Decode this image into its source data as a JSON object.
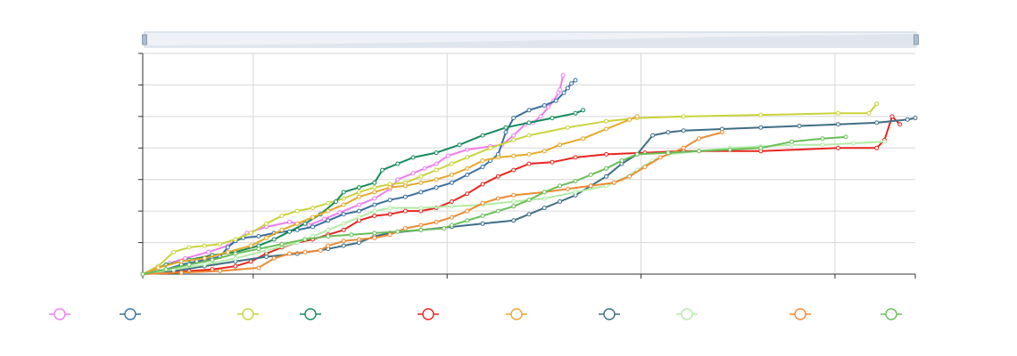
{
  "chart_data": {
    "type": "line",
    "title": "",
    "xlabel": "",
    "ylabel": "",
    "xlim": [
      0,
      100
    ],
    "ylim": [
      0,
      140
    ],
    "x_gridlines": [
      14.3,
      39.4,
      64.5,
      89.6
    ],
    "y_gridlines": [
      20,
      40,
      60,
      80,
      100,
      120
    ],
    "grid": true,
    "legend_position": "bottom",
    "data_zoom_slider": {
      "start": 0,
      "end": 100
    },
    "series": [
      {
        "color": "#f07cf0",
        "points": [
          [
            0,
            0
          ],
          [
            1.5,
            3
          ],
          [
            3.5,
            7
          ],
          [
            5.5,
            10
          ],
          [
            8.5,
            14
          ],
          [
            11,
            18
          ],
          [
            13.5,
            26
          ],
          [
            16,
            30
          ],
          [
            19,
            33
          ],
          [
            21.5,
            31
          ],
          [
            23.5,
            35
          ],
          [
            25.5,
            39
          ],
          [
            28,
            44
          ],
          [
            30,
            48
          ],
          [
            32,
            54
          ],
          [
            33,
            60
          ],
          [
            35,
            64
          ],
          [
            36.5,
            67
          ],
          [
            38,
            70
          ],
          [
            39.5,
            75
          ],
          [
            42,
            79
          ],
          [
            45,
            81
          ],
          [
            46.5,
            82
          ],
          [
            48,
            88
          ],
          [
            49.5,
            95
          ],
          [
            50.5,
            96
          ],
          [
            51.5,
            100
          ],
          [
            52.5,
            106
          ],
          [
            53.2,
            110
          ],
          [
            53.8,
            115
          ],
          [
            54,
            117
          ],
          [
            54.4,
            126
          ]
        ]
      },
      {
        "color": "#3a6fa0",
        "points": [
          [
            0,
            0
          ],
          [
            3,
            3
          ],
          [
            5,
            6
          ],
          [
            7,
            8
          ],
          [
            9,
            10
          ],
          [
            10,
            11
          ],
          [
            11,
            17
          ],
          [
            12,
            21
          ],
          [
            13,
            23
          ],
          [
            15,
            24
          ],
          [
            17,
            26
          ],
          [
            20,
            28
          ],
          [
            22,
            30
          ],
          [
            24,
            34
          ],
          [
            26,
            38
          ],
          [
            28,
            40
          ],
          [
            30,
            44
          ],
          [
            32,
            47
          ],
          [
            34,
            49
          ],
          [
            36,
            52
          ],
          [
            38,
            55
          ],
          [
            40,
            58
          ],
          [
            42,
            63
          ],
          [
            44,
            68
          ],
          [
            45,
            72
          ],
          [
            46,
            76
          ],
          [
            47,
            90
          ],
          [
            48,
            99
          ],
          [
            50,
            104
          ],
          [
            52,
            107
          ],
          [
            53.5,
            110
          ],
          [
            54.5,
            115
          ],
          [
            55,
            118
          ],
          [
            55.5,
            121
          ],
          [
            56,
            123
          ]
        ]
      },
      {
        "color": "#c8d43a",
        "points": [
          [
            0,
            0
          ],
          [
            2,
            5
          ],
          [
            4,
            14
          ],
          [
            6,
            17
          ],
          [
            8,
            18
          ],
          [
            10,
            19
          ],
          [
            12,
            22
          ],
          [
            14,
            26
          ],
          [
            16,
            32
          ],
          [
            18,
            37
          ],
          [
            20,
            40
          ],
          [
            22,
            42
          ],
          [
            24,
            45
          ],
          [
            26,
            48
          ],
          [
            28,
            52
          ],
          [
            30,
            55
          ],
          [
            32,
            57
          ],
          [
            34,
            58
          ],
          [
            36,
            62
          ],
          [
            38,
            66
          ],
          [
            40,
            70
          ],
          [
            42,
            74
          ],
          [
            45,
            80
          ],
          [
            48,
            85
          ],
          [
            50,
            88
          ],
          [
            55,
            93
          ],
          [
            60,
            97
          ],
          [
            64,
            99
          ],
          [
            70,
            100
          ],
          [
            80,
            101
          ],
          [
            90,
            102
          ],
          [
            94,
            102
          ],
          [
            95,
            108
          ]
        ]
      },
      {
        "color": "#158a5b",
        "points": [
          [
            0,
            0
          ],
          [
            3,
            6
          ],
          [
            6,
            9
          ],
          [
            9,
            12
          ],
          [
            12,
            14
          ],
          [
            15,
            18
          ],
          [
            17,
            22
          ],
          [
            19,
            27
          ],
          [
            21,
            32
          ],
          [
            23,
            38
          ],
          [
            25,
            46
          ],
          [
            26,
            52
          ],
          [
            28,
            55
          ],
          [
            30,
            58
          ],
          [
            31,
            66
          ],
          [
            33,
            70
          ],
          [
            35,
            74
          ],
          [
            38,
            77
          ],
          [
            41,
            82
          ],
          [
            44,
            88
          ],
          [
            47,
            93
          ],
          [
            50,
            96
          ],
          [
            53,
            99
          ],
          [
            56,
            102
          ],
          [
            57,
            104
          ]
        ]
      },
      {
        "color": "#e8251f",
        "points": [
          [
            0,
            0
          ],
          [
            3,
            1
          ],
          [
            6,
            2
          ],
          [
            9,
            3
          ],
          [
            12,
            5
          ],
          [
            14,
            8
          ],
          [
            16,
            13
          ],
          [
            18,
            17
          ],
          [
            20,
            20
          ],
          [
            22,
            22
          ],
          [
            24,
            25
          ],
          [
            26,
            28
          ],
          [
            28,
            34
          ],
          [
            30,
            37
          ],
          [
            32,
            38
          ],
          [
            34,
            40
          ],
          [
            36,
            40
          ],
          [
            38,
            42
          ],
          [
            40,
            46
          ],
          [
            42,
            51
          ],
          [
            44,
            57
          ],
          [
            46,
            62
          ],
          [
            48,
            66
          ],
          [
            50,
            70
          ],
          [
            53,
            71
          ],
          [
            56,
            74
          ],
          [
            60,
            76
          ],
          [
            65,
            77
          ],
          [
            70,
            78
          ],
          [
            80,
            78
          ],
          [
            90,
            80
          ],
          [
            95,
            80
          ],
          [
            96,
            85
          ],
          [
            97,
            100
          ],
          [
            98,
            95
          ]
        ]
      },
      {
        "color": "#e6a92a",
        "points": [
          [
            0,
            0
          ],
          [
            2,
            4
          ],
          [
            5,
            8
          ],
          [
            8,
            10
          ],
          [
            11,
            14
          ],
          [
            14,
            18
          ],
          [
            16,
            23
          ],
          [
            18,
            28
          ],
          [
            20,
            32
          ],
          [
            22,
            36
          ],
          [
            24,
            40
          ],
          [
            26,
            44
          ],
          [
            28,
            49
          ],
          [
            30,
            52
          ],
          [
            32,
            55
          ],
          [
            34,
            56
          ],
          [
            36,
            58
          ],
          [
            38,
            60
          ],
          [
            40,
            63
          ],
          [
            42,
            67
          ],
          [
            44,
            72
          ],
          [
            46,
            74
          ],
          [
            48,
            75
          ],
          [
            50,
            76
          ],
          [
            52,
            78
          ],
          [
            54,
            82
          ],
          [
            57,
            86
          ],
          [
            60,
            92
          ],
          [
            63,
            98
          ],
          [
            64,
            100
          ]
        ]
      },
      {
        "color": "#3e6e86",
        "points": [
          [
            0,
            0
          ],
          [
            4,
            2
          ],
          [
            8,
            5
          ],
          [
            12,
            8
          ],
          [
            16,
            11
          ],
          [
            20,
            13
          ],
          [
            24,
            16
          ],
          [
            26,
            18
          ],
          [
            28,
            20
          ],
          [
            30,
            24
          ],
          [
            32,
            26
          ],
          [
            36,
            28
          ],
          [
            40,
            30
          ],
          [
            44,
            32
          ],
          [
            48,
            34
          ],
          [
            50,
            38
          ],
          [
            52,
            42
          ],
          [
            54,
            46
          ],
          [
            56,
            50
          ],
          [
            58,
            56
          ],
          [
            60,
            62
          ],
          [
            62,
            70
          ],
          [
            64,
            76
          ],
          [
            66,
            88
          ],
          [
            68,
            90
          ],
          [
            70,
            91
          ],
          [
            75,
            92
          ],
          [
            80,
            93
          ],
          [
            85,
            94
          ],
          [
            90,
            95
          ],
          [
            95,
            96
          ],
          [
            99,
            98
          ],
          [
            100,
            99
          ]
        ]
      },
      {
        "color": "#b3eba6",
        "points": [
          [
            0,
            0
          ],
          [
            4,
            3
          ],
          [
            8,
            6
          ],
          [
            12,
            10
          ],
          [
            16,
            15
          ],
          [
            20,
            20
          ],
          [
            22,
            24
          ],
          [
            24,
            28
          ],
          [
            26,
            32
          ],
          [
            28,
            36
          ],
          [
            30,
            40
          ],
          [
            32,
            42
          ],
          [
            36,
            42
          ],
          [
            40,
            43
          ],
          [
            44,
            44
          ],
          [
            48,
            46
          ],
          [
            52,
            48
          ],
          [
            56,
            52
          ],
          [
            60,
            56
          ],
          [
            62,
            60
          ],
          [
            64,
            66
          ],
          [
            66,
            72
          ],
          [
            68,
            76
          ],
          [
            72,
            78
          ],
          [
            76,
            80
          ],
          [
            80,
            81
          ],
          [
            84,
            82
          ],
          [
            88,
            82
          ],
          [
            92,
            83
          ],
          [
            96,
            84
          ]
        ]
      },
      {
        "color": "#ee8a32",
        "points": [
          [
            0,
            0
          ],
          [
            5,
            1
          ],
          [
            10,
            2
          ],
          [
            15,
            4
          ],
          [
            17,
            10
          ],
          [
            19,
            13
          ],
          [
            21,
            14
          ],
          [
            23,
            15
          ],
          [
            24,
            18
          ],
          [
            26,
            21
          ],
          [
            28,
            22
          ],
          [
            30,
            23
          ],
          [
            32,
            25
          ],
          [
            34,
            29
          ],
          [
            36,
            31
          ],
          [
            38,
            33
          ],
          [
            40,
            36
          ],
          [
            42,
            40
          ],
          [
            44,
            45
          ],
          [
            46,
            48
          ],
          [
            48,
            50
          ],
          [
            52,
            52
          ],
          [
            55,
            54
          ],
          [
            58,
            56
          ],
          [
            61,
            58
          ],
          [
            63,
            62
          ],
          [
            65,
            68
          ],
          [
            67,
            74
          ],
          [
            70,
            80
          ],
          [
            72,
            86
          ],
          [
            75,
            90
          ]
        ]
      },
      {
        "color": "#69be58",
        "points": [
          [
            0,
            0
          ],
          [
            3,
            3
          ],
          [
            6,
            6
          ],
          [
            9,
            9
          ],
          [
            12,
            13
          ],
          [
            15,
            16
          ],
          [
            18,
            19
          ],
          [
            21,
            22
          ],
          [
            24,
            24
          ],
          [
            27,
            25
          ],
          [
            30,
            26
          ],
          [
            33,
            27
          ],
          [
            36,
            28
          ],
          [
            39,
            29
          ],
          [
            40,
            31
          ],
          [
            42,
            34
          ],
          [
            44,
            37
          ],
          [
            46,
            40
          ],
          [
            48,
            43
          ],
          [
            50,
            47
          ],
          [
            52,
            52
          ],
          [
            54,
            56
          ],
          [
            56,
            59
          ],
          [
            58,
            63
          ],
          [
            60,
            67
          ],
          [
            62,
            72
          ],
          [
            64,
            76
          ],
          [
            68,
            77
          ],
          [
            72,
            78
          ],
          [
            76,
            79
          ],
          [
            80,
            80
          ],
          [
            84,
            84
          ],
          [
            88,
            86
          ],
          [
            91,
            87
          ]
        ]
      }
    ]
  }
}
